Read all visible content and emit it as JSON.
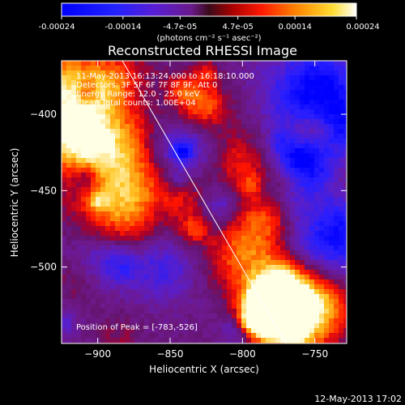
{
  "colorbar": {
    "tick_labels": [
      "-0.00024",
      "-0.00014",
      "-4.7e-05",
      "4.7e-05",
      "0.00014",
      "0.00024"
    ],
    "tick_values": [
      -0.00024,
      -0.00014,
      -4.7e-05,
      4.7e-05,
      0.00014,
      0.00024
    ],
    "range": [
      -0.00024,
      0.00024
    ],
    "units_label": "(photons cm⁻² s⁻¹ asec⁻²)"
  },
  "chart_data": {
    "type": "heatmap",
    "title": "Reconstructed RHESSI Image",
    "xlabel": "Heliocentric X (arcsec)",
    "ylabel": "Heliocentric Y (arcsec)",
    "xlim": [
      -925,
      -728
    ],
    "ylim": [
      -550,
      -365
    ],
    "xticks": [
      -900,
      -850,
      -800,
      -750
    ],
    "xtick_labels": [
      "−900",
      "−850",
      "−800",
      "−750"
    ],
    "yticks": [
      -400,
      -450,
      -500
    ],
    "ytick_labels": [
      "−400",
      "−450",
      "−500"
    ],
    "annotations": [
      "11-May-2013 16:13:24.000 to 16:18:10.000",
      "Detectors: 3F 5F 6F 7F 8F 9F, Att 0",
      "Energy Range: 12.0 - 25.0 keV",
      "Clean  Total counts: 1.00E+04"
    ],
    "peak_label": "Position of Peak = [-783,-526]",
    "peak": [
      -783,
      -526
    ],
    "limb_line": [
      [
        -883,
        -365
      ],
      [
        -770,
        -550
      ]
    ],
    "colormap": [
      "#0000ff",
      "#3333ff",
      "#6a1fd6",
      "#7a1a90",
      "#ff0000",
      "#ff6600",
      "#ffaa00",
      "#ffff66",
      "#ffffff"
    ]
  },
  "footer": {
    "timestamp": "12-May-2013 17:02"
  }
}
